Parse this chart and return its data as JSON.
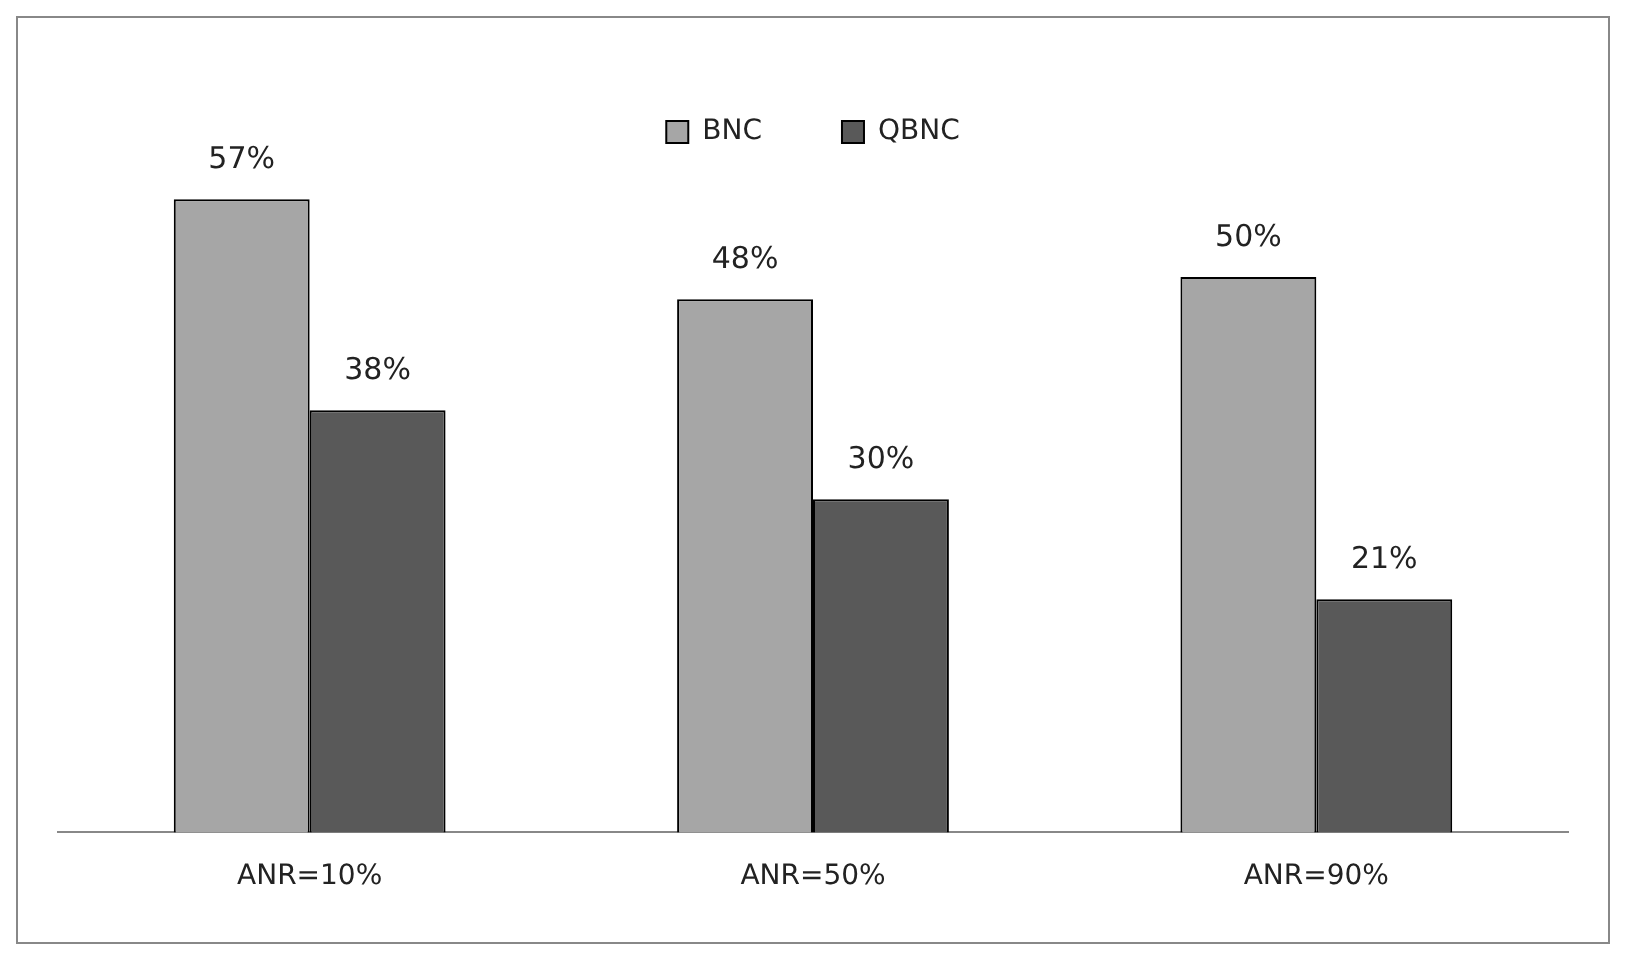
{
  "chart_data": {
    "type": "bar",
    "categories": [
      "ANR=10%",
      "ANR=50%",
      "ANR=90%"
    ],
    "series": [
      {
        "name": "BNC",
        "color": "#a6a6a6",
        "values": [
          57,
          48,
          50
        ],
        "value_labels": [
          "57%",
          "48%",
          "50%"
        ]
      },
      {
        "name": "QBNC",
        "color": "#595959",
        "values": [
          38,
          30,
          21
        ],
        "value_labels": [
          "38%",
          "30%",
          "21%"
        ]
      }
    ],
    "legend": "top",
    "grid": false
  }
}
